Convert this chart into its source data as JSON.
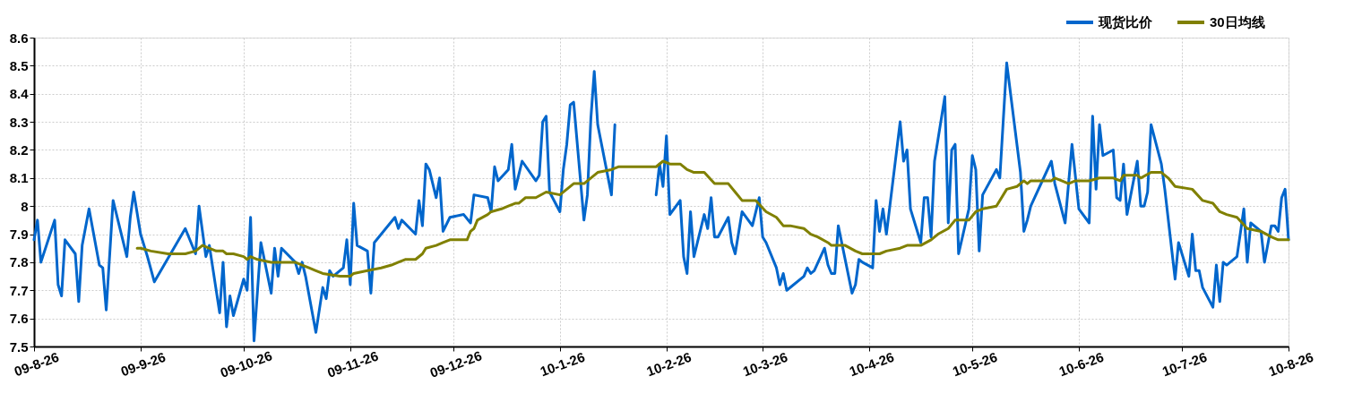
{
  "chart_data": {
    "type": "line",
    "x": [
      "2009-08-26",
      "2009-08-27",
      "2009-08-28",
      "2009-09-01",
      "2009-09-02",
      "2009-09-03",
      "2009-09-04",
      "2009-09-07",
      "2009-09-08",
      "2009-09-09",
      "2009-09-11",
      "2009-09-14",
      "2009-09-15",
      "2009-09-16",
      "2009-09-18",
      "2009-09-22",
      "2009-09-23",
      "2009-09-24",
      "2009-09-26",
      "2009-09-28",
      "2009-09-30",
      "2009-10-09",
      "2009-10-12",
      "2009-10-13",
      "2009-10-15",
      "2009-10-16",
      "2009-10-19",
      "2009-10-20",
      "2009-10-21",
      "2009-10-22",
      "2009-10-23",
      "2009-10-26",
      "2009-10-27",
      "2009-10-28",
      "2009-10-29",
      "2009-10-31",
      "2009-11-03",
      "2009-11-04",
      "2009-11-05",
      "2009-11-06",
      "2009-11-10",
      "2009-11-11",
      "2009-11-12",
      "2009-11-13",
      "2009-11-16",
      "2009-11-18",
      "2009-11-19",
      "2009-11-20",
      "2009-11-21",
      "2009-11-24",
      "2009-11-25",
      "2009-11-26",
      "2009-11-27",
      "2009-11-28",
      "2009-12-01",
      "2009-12-02",
      "2009-12-03",
      "2009-12-09",
      "2009-12-10",
      "2009-12-11",
      "2009-12-15",
      "2009-12-16",
      "2009-12-17",
      "2009-12-18",
      "2009-12-19",
      "2009-12-21",
      "2009-12-22",
      "2009-12-23",
      "2009-12-25",
      "2009-12-29",
      "2009-12-31",
      "2010-01-01",
      "2010-01-05",
      "2010-01-06",
      "2010-01-07",
      "2010-01-08",
      "2010-01-11",
      "2010-01-12",
      "2010-01-13",
      "2010-01-15",
      "2010-01-19",
      "2010-01-20",
      "2010-01-21",
      "2010-01-22",
      "2010-01-23",
      "2010-01-26",
      "2010-01-27",
      "2010-01-28",
      "2010-01-29",
      "2010-01-30",
      "2010-02-02",
      "2010-02-03",
      "2010-02-04",
      "2010-02-05",
      "2010-02-06",
      "2010-02-10",
      "2010-02-11",
      "2010-02-20",
      "2010-02-23",
      "2010-02-24",
      "2010-02-25",
      "2010-02-26",
      "2010-02-27",
      "2010-03-02",
      "2010-03-03",
      "2010-03-04",
      "2010-03-05",
      "2010-03-06",
      "2010-03-09",
      "2010-03-10",
      "2010-03-11",
      "2010-03-12",
      "2010-03-13",
      "2010-03-16",
      "2010-03-17",
      "2010-03-18",
      "2010-03-20",
      "2010-03-23",
      "2010-03-25",
      "2010-03-26",
      "2010-03-27",
      "2010-03-30",
      "2010-03-31",
      "2010-04-01",
      "2010-04-02",
      "2010-04-07",
      "2010-04-08",
      "2010-04-09",
      "2010-04-10",
      "2010-04-13",
      "2010-04-14",
      "2010-04-15",
      "2010-04-16",
      "2010-04-17",
      "2010-04-21",
      "2010-04-22",
      "2010-04-23",
      "2010-04-24",
      "2010-04-27",
      "2010-04-28",
      "2010-04-29",
      "2010-04-30",
      "2010-05-01",
      "2010-05-05",
      "2010-05-06",
      "2010-05-07",
      "2010-05-08",
      "2010-05-11",
      "2010-05-12",
      "2010-05-13",
      "2010-05-14",
      "2010-05-15",
      "2010-05-18",
      "2010-05-19",
      "2010-05-20",
      "2010-05-21",
      "2010-05-22",
      "2010-05-25",
      "2010-05-26",
      "2010-05-27",
      "2010-05-28",
      "2010-05-29",
      "2010-06-02",
      "2010-06-03",
      "2010-06-05",
      "2010-06-09",
      "2010-06-10",
      "2010-06-11",
      "2010-06-12",
      "2010-06-18",
      "2010-06-19",
      "2010-06-22",
      "2010-06-24",
      "2010-06-26",
      "2010-06-29",
      "2010-06-30",
      "2010-07-01",
      "2010-07-02",
      "2010-07-03",
      "2010-07-06",
      "2010-07-07",
      "2010-07-08",
      "2010-07-09",
      "2010-07-10",
      "2010-07-13",
      "2010-07-14",
      "2010-07-15",
      "2010-07-16",
      "2010-07-17",
      "2010-07-20",
      "2010-07-21",
      "2010-07-24",
      "2010-07-25",
      "2010-07-28",
      "2010-07-29",
      "2010-07-30",
      "2010-07-31",
      "2010-08-01",
      "2010-08-04",
      "2010-08-05",
      "2010-08-06",
      "2010-08-07",
      "2010-08-08",
      "2010-08-11",
      "2010-08-13",
      "2010-08-14",
      "2010-08-15",
      "2010-08-18",
      "2010-08-19",
      "2010-08-21",
      "2010-08-22",
      "2010-08-23",
      "2010-08-24",
      "2010-08-25",
      "2010-08-26"
    ],
    "series": [
      {
        "name": "现货比价",
        "color": "#0066cc",
        "values": [
          7.88,
          7.95,
          7.8,
          7.95,
          7.72,
          7.68,
          7.88,
          7.83,
          7.66,
          7.86,
          7.99,
          7.79,
          7.78,
          7.63,
          8.02,
          7.82,
          7.96,
          8.05,
          7.9,
          7.82,
          7.73,
          7.92,
          7.83,
          8.0,
          7.82,
          7.86,
          7.62,
          7.8,
          7.57,
          7.68,
          7.61,
          7.74,
          7.7,
          7.96,
          7.52,
          7.87,
          7.69,
          7.85,
          7.75,
          7.85,
          7.8,
          7.76,
          7.8,
          7.75,
          7.55,
          7.71,
          7.67,
          7.77,
          7.75,
          7.78,
          7.88,
          7.72,
          8.01,
          7.86,
          7.84,
          7.69,
          7.87,
          7.96,
          7.92,
          7.95,
          7.9,
          8.02,
          7.93,
          8.15,
          8.13,
          8.03,
          8.1,
          7.91,
          7.96,
          7.97,
          7.94,
          8.04,
          8.03,
          7.98,
          8.14,
          8.09,
          8.13,
          8.22,
          8.06,
          8.16,
          8.09,
          8.11,
          8.3,
          8.32,
          8.05,
          7.98,
          8.13,
          8.22,
          8.36,
          8.37,
          7.95,
          8.04,
          8.31,
          8.48,
          8.29,
          8.04,
          8.29,
          null,
          8.04,
          8.15,
          8.07,
          8.25,
          7.97,
          8.02,
          7.82,
          7.76,
          7.98,
          7.82,
          7.97,
          7.92,
          8.03,
          7.89,
          7.89,
          7.96,
          7.87,
          7.83,
          7.98,
          7.93,
          8.03,
          7.89,
          7.87,
          7.78,
          7.72,
          7.76,
          7.7,
          7.75,
          7.78,
          7.76,
          7.77,
          7.85,
          7.79,
          7.76,
          7.76,
          7.93,
          7.69,
          7.72,
          7.81,
          7.8,
          7.78,
          8.02,
          7.91,
          7.99,
          7.9,
          8.3,
          8.16,
          8.2,
          7.99,
          7.87,
          8.03,
          8.03,
          7.89,
          8.16,
          8.39,
          7.94,
          8.2,
          8.22,
          7.83,
          7.99,
          8.18,
          8.13,
          7.84,
          8.04,
          8.13,
          8.1,
          8.51,
          8.12,
          7.91,
          7.95,
          8.0,
          8.16,
          8.08,
          7.94,
          8.22,
          7.99,
          7.94,
          8.32,
          8.06,
          8.29,
          8.18,
          8.2,
          8.03,
          8.02,
          8.15,
          7.97,
          8.16,
          8.0,
          8.0,
          8.05,
          8.29,
          8.15,
          8.06,
          7.74,
          7.87,
          7.75,
          7.9,
          7.77,
          7.77,
          7.71,
          7.64,
          7.79,
          7.66,
          7.8,
          7.79,
          7.82,
          7.99,
          7.8,
          7.94,
          7.91,
          7.8,
          7.93,
          7.93,
          7.91,
          8.03,
          8.06,
          7.88
        ]
      },
      {
        "name": "30日均线",
        "color": "#808000",
        "x": [
          "2009-09-25",
          "2009-09-26",
          "2009-09-29",
          "2009-10-04",
          "2009-10-09",
          "2009-10-12",
          "2009-10-14",
          "2009-10-18",
          "2009-10-20",
          "2009-10-21",
          "2009-10-23",
          "2009-10-26",
          "2009-10-27",
          "2009-10-28",
          "2009-10-30",
          "2009-11-03",
          "2009-11-10",
          "2009-11-12",
          "2009-11-14",
          "2009-11-16",
          "2009-11-18",
          "2009-11-23",
          "2009-11-26",
          "2009-11-27",
          "2009-12-01",
          "2009-12-05",
          "2009-12-08",
          "2009-12-10",
          "2009-12-12",
          "2009-12-15",
          "2009-12-17",
          "2009-12-18",
          "2009-12-21",
          "2009-12-23",
          "2009-12-25",
          "2009-12-29",
          "2009-12-30",
          "2009-12-31",
          "2010-01-01",
          "2010-01-02",
          "2010-01-05",
          "2010-01-06",
          "2010-01-09",
          "2010-01-11",
          "2010-01-13",
          "2010-01-14",
          "2010-01-16",
          "2010-01-19",
          "2010-01-22",
          "2010-01-26",
          "2010-01-30",
          "2010-02-02",
          "2010-02-06",
          "2010-02-10",
          "2010-02-12",
          "2010-02-23",
          "2010-02-25",
          "2010-02-27",
          "2010-03-02",
          "2010-03-04",
          "2010-03-06",
          "2010-03-09",
          "2010-03-12",
          "2010-03-16",
          "2010-03-18",
          "2010-03-20",
          "2010-03-24",
          "2010-03-27",
          "2010-03-30",
          "2010-04-01",
          "2010-04-03",
          "2010-04-07",
          "2010-04-09",
          "2010-04-11",
          "2010-04-14",
          "2010-04-15",
          "2010-04-19",
          "2010-04-22",
          "2010-04-24",
          "2010-04-29",
          "2010-05-01",
          "2010-05-05",
          "2010-05-07",
          "2010-05-11",
          "2010-05-14",
          "2010-05-16",
          "2010-05-19",
          "2010-05-21",
          "2010-05-25",
          "2010-05-27",
          "2010-05-29",
          "2010-06-02",
          "2010-06-03",
          "2010-06-05",
          "2010-06-08",
          "2010-06-10",
          "2010-06-11",
          "2010-06-12",
          "2010-06-18",
          "2010-06-19",
          "2010-06-21",
          "2010-06-23",
          "2010-06-25",
          "2010-06-29",
          "2010-07-02",
          "2010-07-06",
          "2010-07-08",
          "2010-07-09",
          "2010-07-13",
          "2010-07-14",
          "2010-07-17",
          "2010-07-20",
          "2010-07-22",
          "2010-07-24",
          "2010-07-29",
          "2010-08-01",
          "2010-08-04",
          "2010-08-06",
          "2010-08-08",
          "2010-08-11",
          "2010-08-14",
          "2010-08-18",
          "2010-08-21",
          "2010-08-23",
          "2010-08-26"
        ],
        "values": [
          7.85,
          7.85,
          7.84,
          7.83,
          7.83,
          7.84,
          7.86,
          7.84,
          7.84,
          7.83,
          7.83,
          7.82,
          7.81,
          7.82,
          7.81,
          7.8,
          7.8,
          7.79,
          7.78,
          7.77,
          7.76,
          7.75,
          7.75,
          7.76,
          7.77,
          7.78,
          7.79,
          7.8,
          7.81,
          7.81,
          7.83,
          7.85,
          7.86,
          7.87,
          7.88,
          7.88,
          7.88,
          7.91,
          7.92,
          7.95,
          7.97,
          7.98,
          7.99,
          8.0,
          8.01,
          8.01,
          8.03,
          8.03,
          8.05,
          8.04,
          8.08,
          8.08,
          8.12,
          8.13,
          8.14,
          8.14,
          8.16,
          8.15,
          8.15,
          8.13,
          8.12,
          8.12,
          8.08,
          8.08,
          8.05,
          8.02,
          8.02,
          7.98,
          7.96,
          7.93,
          7.93,
          7.92,
          7.9,
          7.89,
          7.87,
          7.86,
          7.86,
          7.84,
          7.83,
          7.83,
          7.84,
          7.85,
          7.86,
          7.86,
          7.88,
          7.9,
          7.92,
          7.95,
          7.95,
          7.98,
          7.99,
          8.0,
          8.02,
          8.06,
          8.07,
          8.09,
          8.08,
          8.09,
          8.09,
          8.1,
          8.09,
          8.08,
          8.09,
          8.09,
          8.1,
          8.1,
          8.09,
          8.11,
          8.11,
          8.1,
          8.12,
          8.12,
          8.1,
          8.07,
          8.06,
          8.02,
          8.01,
          7.98,
          7.97,
          7.96,
          7.92,
          7.91,
          7.89,
          7.88,
          7.88
        ]
      }
    ],
    "xlim": [
      "2009-08-26",
      "2010-08-26"
    ],
    "xticks": [
      {
        "value": "2009-08-26",
        "label": "09-8-26"
      },
      {
        "value": "2009-09-26",
        "label": "09-9-26"
      },
      {
        "value": "2009-10-26",
        "label": "09-10-26"
      },
      {
        "value": "2009-11-26",
        "label": "09-11-26"
      },
      {
        "value": "2009-12-26",
        "label": "09-12-26"
      },
      {
        "value": "2010-01-26",
        "label": "10-1-26"
      },
      {
        "value": "2010-02-26",
        "label": "10-2-26"
      },
      {
        "value": "2010-03-26",
        "label": "10-3-26"
      },
      {
        "value": "2010-04-26",
        "label": "10-4-26"
      },
      {
        "value": "2010-05-26",
        "label": "10-5-26"
      },
      {
        "value": "2010-06-26",
        "label": "10-6-26"
      },
      {
        "value": "2010-07-26",
        "label": "10-7-26"
      },
      {
        "value": "2010-08-26",
        "label": "10-8-26"
      }
    ],
    "ylim": [
      7.5,
      8.6
    ],
    "yticks": [
      7.5,
      7.6,
      7.7,
      7.8,
      7.9,
      8,
      8.1,
      8.2,
      8.3,
      8.4,
      8.5,
      8.6
    ],
    "grid": true,
    "legend": "top right"
  }
}
